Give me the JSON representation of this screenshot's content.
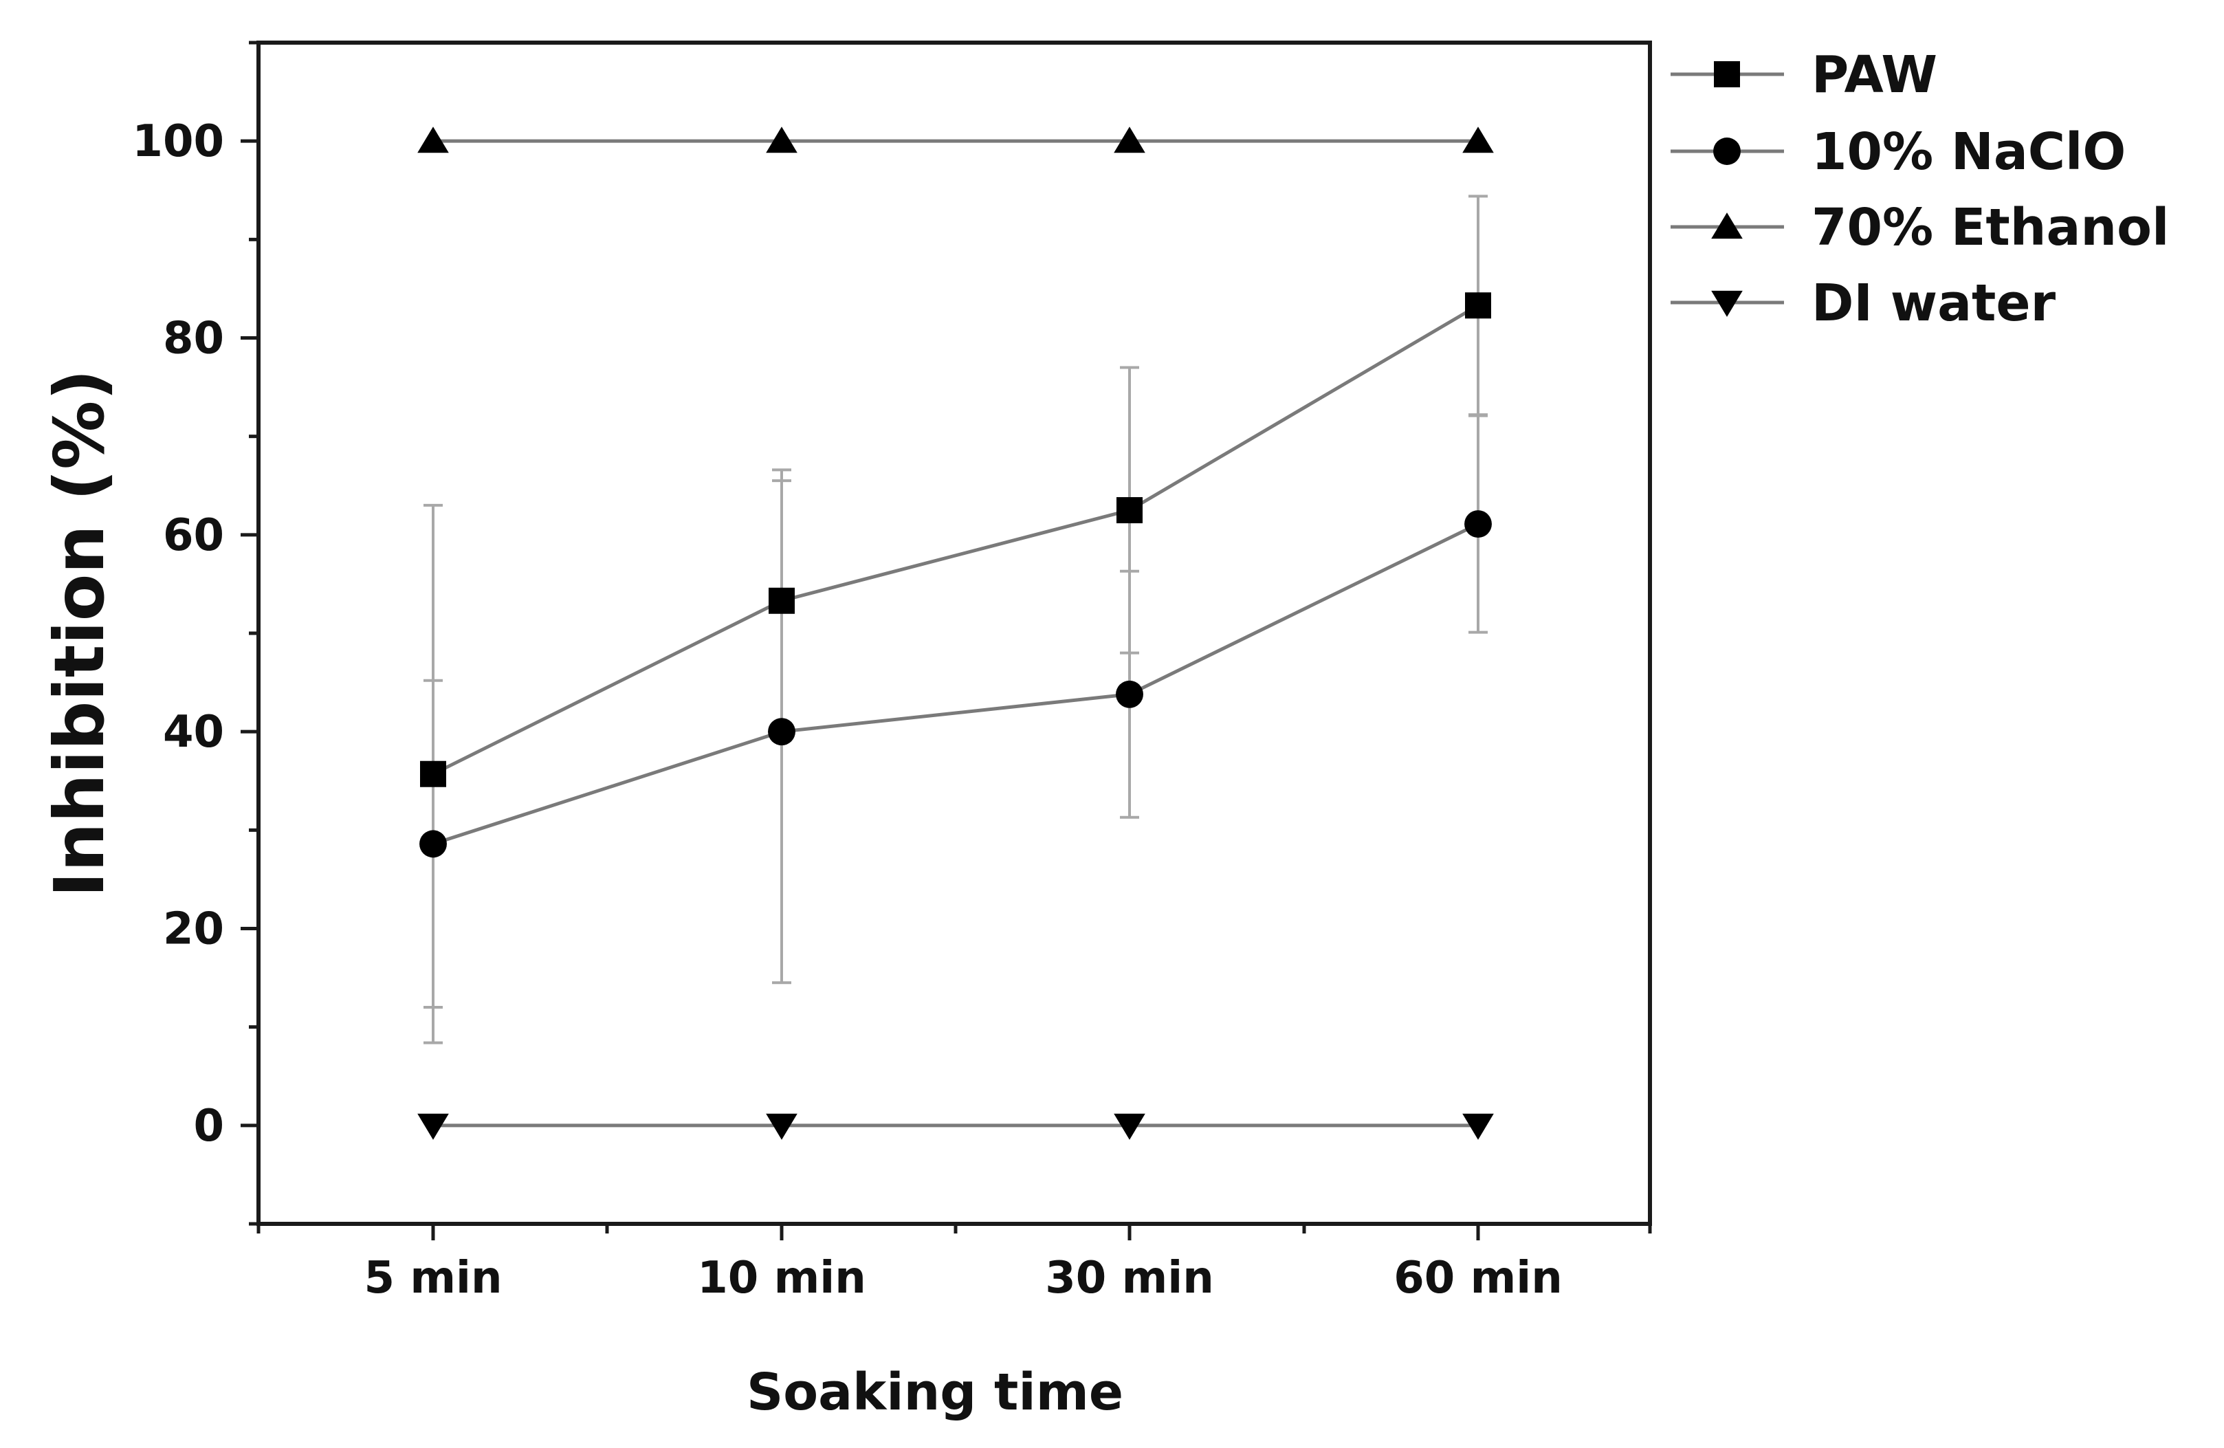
{
  "chart_data": {
    "type": "line",
    "title": "",
    "xlabel": "Soaking time",
    "ylabel": "Inhibition (%)",
    "categories": [
      "5 min",
      "10 min",
      "30 min",
      "60 min"
    ],
    "ylim": [
      -10,
      110
    ],
    "yticks": [
      0,
      20,
      40,
      60,
      80,
      100
    ],
    "yticks_labels": [
      "0",
      "20",
      "40",
      "60",
      "80",
      "100"
    ],
    "grid": false,
    "legend_position": "top-right (outside plot)",
    "line_color": "#7a7a7a",
    "errorbar_color": "#a8a8a8",
    "marker_color": "#000000",
    "series": [
      {
        "name": "PAW",
        "marker": "square",
        "values": [
          35.7,
          53.3,
          62.5,
          83.3
        ],
        "err": [
          27.3,
          13.3,
          14.5,
          11.1
        ]
      },
      {
        "name": "10% NaClO",
        "marker": "circle",
        "values": [
          28.6,
          40.0,
          43.8,
          61.1
        ],
        "err": [
          16.6,
          25.5,
          12.5,
          11.0
        ]
      },
      {
        "name": "70% Ethanol",
        "marker": "triangle-up",
        "values": [
          100,
          100,
          100,
          100
        ],
        "err": [
          0,
          0,
          0,
          0
        ]
      },
      {
        "name": "DI water",
        "marker": "triangle-down",
        "values": [
          0,
          0,
          0,
          0
        ],
        "err": [
          0,
          0,
          0,
          0
        ]
      }
    ]
  }
}
